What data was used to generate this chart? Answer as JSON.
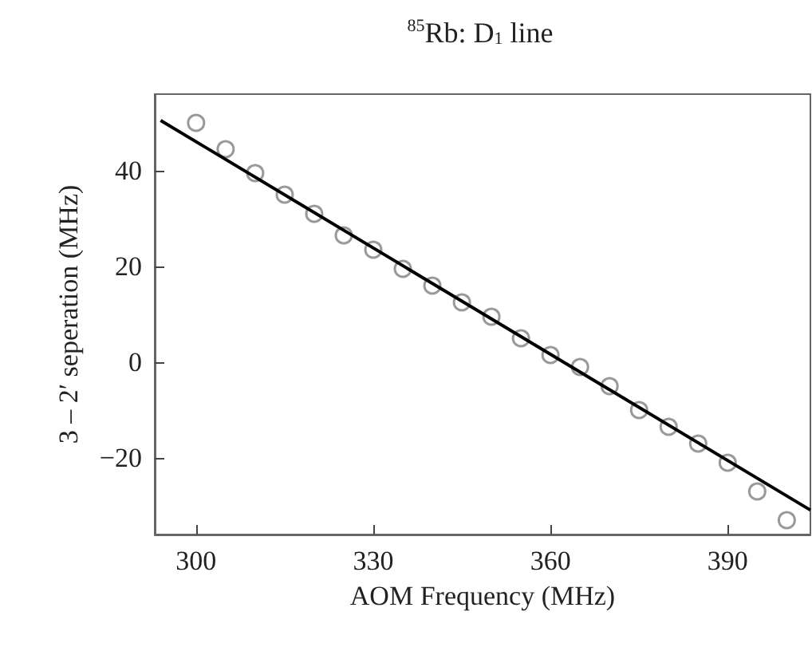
{
  "chart_data": {
    "type": "scatter",
    "title": "$^{85}$Rb: D$_{1}$ line",
    "xlabel": "AOM Frequency (MHz)",
    "ylabel": "3 – 2′ seperation (MHz)",
    "x": [
      300,
      305,
      310,
      315,
      320,
      325,
      330,
      335,
      340,
      345,
      350,
      355,
      360,
      365,
      370,
      375,
      380,
      385,
      390,
      395,
      400
    ],
    "series": [
      {
        "color": "#808080",
        "marker": "circle",
        "values": [
          50,
          44.5,
          39.5,
          35,
          31,
          26.5,
          23.5,
          19.5,
          16,
          12.5,
          9.5,
          5,
          1.5,
          -1,
          -5,
          -10,
          -13.5,
          -17,
          -21,
          -27,
          -33
        ]
      },
      {
        "type": "line",
        "color": "#000000",
        "marker": "none",
        "x": [
          294,
          404
        ],
        "values": [
          50.5,
          -30.9
        ]
      }
    ],
    "xlim": [
      293,
      404
    ],
    "ylim": [
      -36,
      56
    ],
    "xticks": [
      300,
      330,
      360,
      390
    ],
    "yticks": [
      -20,
      0,
      20,
      40
    ],
    "grid": false
  }
}
